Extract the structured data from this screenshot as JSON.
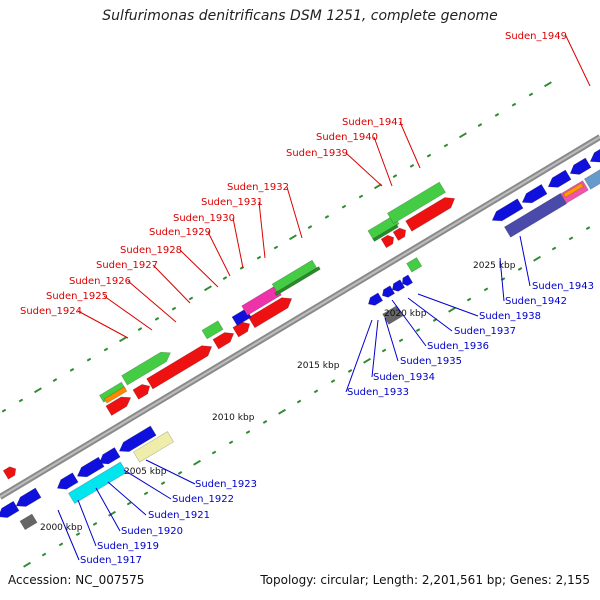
{
  "title": "Sulfurimonas denitrificans DSM 1251, complete genome",
  "accession": "Accession: NC_007575",
  "topology": "Topology: circular; Length: 2,201,561 bp; Genes: 2,155",
  "colors": {
    "backbone": "#888888",
    "label_red": "#dd0000",
    "label_blue": "#0000cc",
    "tick": "#228822"
  },
  "kbp_labels": [
    "2000 kbp",
    "2005 kbp",
    "2010 kbp",
    "2015 kbp",
    "2020 kbp",
    "2025 kbp"
  ],
  "red_labels": [
    "Suden_1924",
    "Suden_1925",
    "Suden_1926",
    "Suden_1927",
    "Suden_1928",
    "Suden_1929",
    "Suden_1930",
    "Suden_1931",
    "Suden_1932",
    "Suden_1939",
    "Suden_1940",
    "Suden_1941",
    "Suden_1949"
  ],
  "blue_labels": [
    "Suden_1917",
    "Suden_1919",
    "Suden_1920",
    "Suden_1921",
    "Suden_1922",
    "Suden_1923",
    "Suden_1933",
    "Suden_1934",
    "Suden_1935",
    "Suden_1936",
    "Suden_1937",
    "Suden_1938",
    "Suden_1942",
    "Suden_1943"
  ]
}
